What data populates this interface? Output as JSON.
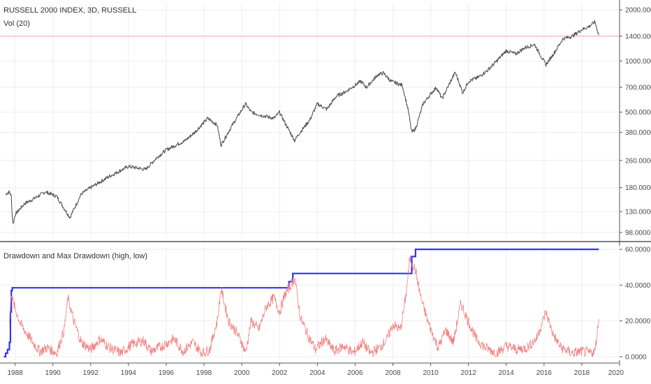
{
  "chart_data": [
    {
      "type": "line",
      "title": "RUSSELL 2000 INDEX, 3D, RUSSELL",
      "indicator": "Vol (20)",
      "y_scale": "log",
      "ylim": [
        90,
        2200
      ],
      "xlim": [
        1987.2,
        2020
      ],
      "y_ticks": [
        "2000.0000",
        "1400.0000",
        "1000.0000",
        "700.0000",
        "500.0000",
        "380.0000",
        "260.0000",
        "180.0000",
        "130.0000",
        "98.0000"
      ],
      "y_tick_values": [
        2000,
        1400,
        1000,
        700,
        500,
        380,
        260,
        180,
        130,
        98
      ],
      "reference_line": {
        "value": 1400,
        "color": "#f4a5a0"
      },
      "grid": true,
      "series": [
        {
          "color": "#555555",
          "x": [
            1987.5,
            1987.7,
            1987.8,
            1987.85,
            1987.9,
            1988.0,
            1988.5,
            1989.0,
            1989.6,
            1990.2,
            1990.8,
            1990.9,
            1991.5,
            1992.0,
            1993.0,
            1994.0,
            1994.9,
            1995.5,
            1996.0,
            1996.5,
            1997.0,
            1997.5,
            1998.2,
            1998.7,
            1998.9,
            1999.5,
            2000.2,
            2000.5,
            2001.0,
            2001.7,
            2002.0,
            2002.3,
            2002.8,
            2003.0,
            2003.6,
            2004.0,
            2004.5,
            2005.0,
            2005.5,
            2006.3,
            2006.6,
            2007.2,
            2007.5,
            2007.9,
            2008.2,
            2008.5,
            2008.8,
            2009.0,
            2009.2,
            2009.6,
            2010.0,
            2010.3,
            2010.6,
            2011.3,
            2011.7,
            2012.0,
            2012.5,
            2013.0,
            2013.5,
            2014.0,
            2014.5,
            2015.0,
            2015.5,
            2016.1,
            2016.5,
            2017.0,
            2017.5,
            2018.0,
            2018.4,
            2018.7,
            2018.9
          ],
          "values": [
            165,
            170,
            160,
            120,
            110,
            125,
            145,
            155,
            170,
            160,
            125,
            120,
            165,
            180,
            210,
            240,
            230,
            270,
            300,
            320,
            340,
            380,
            460,
            420,
            320,
            420,
            560,
            500,
            480,
            460,
            500,
            430,
            340,
            370,
            450,
            560,
            520,
            620,
            660,
            760,
            700,
            830,
            850,
            760,
            740,
            720,
            520,
            380,
            400,
            560,
            640,
            700,
            600,
            860,
            650,
            760,
            800,
            880,
            1000,
            1150,
            1100,
            1200,
            1250,
            950,
            1100,
            1350,
            1400,
            1530,
            1600,
            1700,
            1420
          ]
        }
      ]
    },
    {
      "type": "line",
      "title": "Drawdown and Max Drawdown (high, low)",
      "ylim": [
        -2,
        62
      ],
      "xlim": [
        1987.2,
        2020
      ],
      "y_ticks": [
        "60.0000",
        "40.0000",
        "20.0000",
        "0.0000"
      ],
      "y_tick_values": [
        60,
        40,
        20,
        0
      ],
      "x_ticks": [
        "1988",
        "1990",
        "1992",
        "1994",
        "1996",
        "1998",
        "2000",
        "2002",
        "2004",
        "2006",
        "2008",
        "2010",
        "2012",
        "2014",
        "2016",
        "2018",
        "2020"
      ],
      "x_tick_values": [
        1988,
        1990,
        1992,
        1994,
        1996,
        1998,
        2000,
        2002,
        2004,
        2006,
        2008,
        2010,
        2012,
        2014,
        2016,
        2018,
        2020
      ],
      "grid": true,
      "series": [
        {
          "color": "#3333ee",
          "step": true,
          "x": [
            1987.4,
            1987.5,
            1987.6,
            1987.7,
            1987.75,
            1987.8,
            1987.85,
            2002.4,
            2002.5,
            2002.7,
            2008.8,
            2009.0,
            2009.2,
            2018.9
          ],
          "values": [
            0,
            2,
            4,
            8,
            25,
            37,
            38.5,
            38.5,
            42,
            46.5,
            46.5,
            56,
            60,
            60
          ]
        },
        {
          "color": "#f08080",
          "x": [
            1987.7,
            1987.8,
            1987.9,
            1988.3,
            1988.8,
            1989.3,
            1989.7,
            1990.2,
            1990.6,
            1990.8,
            1991.1,
            1991.5,
            1992.0,
            1992.5,
            1993.0,
            1993.6,
            1994.2,
            1994.8,
            1995.2,
            1995.8,
            1996.4,
            1996.9,
            1997.4,
            1997.9,
            1998.3,
            1998.7,
            1998.9,
            1999.3,
            1999.7,
            2000.0,
            2000.2,
            2000.5,
            2000.9,
            2001.3,
            2001.7,
            2002.0,
            2002.3,
            2002.6,
            2002.8,
            2003.1,
            2003.5,
            2003.9,
            2004.4,
            2004.9,
            2005.4,
            2005.9,
            2006.4,
            2006.8,
            2007.3,
            2007.7,
            2008.0,
            2008.4,
            2008.7,
            2008.9,
            2009.2,
            2009.5,
            2009.9,
            2010.4,
            2010.8,
            2011.2,
            2011.6,
            2011.9,
            2012.4,
            2012.9,
            2013.5,
            2014.0,
            2014.6,
            2015.1,
            2015.6,
            2016.1,
            2016.5,
            2016.9,
            2017.5,
            2018.0,
            2018.4,
            2018.7,
            2018.9
          ],
          "values": [
            20,
            36,
            30,
            18,
            10,
            3,
            5,
            2,
            15,
            33,
            20,
            8,
            4,
            10,
            5,
            2,
            7,
            9,
            3,
            6,
            10,
            3,
            8,
            2,
            4,
            20,
            38,
            20,
            14,
            8,
            2,
            20,
            15,
            28,
            33,
            25,
            35,
            40,
            44,
            22,
            12,
            4,
            10,
            3,
            6,
            2,
            8,
            2,
            5,
            10,
            18,
            15,
            35,
            55,
            48,
            32,
            18,
            5,
            15,
            8,
            30,
            22,
            10,
            5,
            2,
            6,
            4,
            5,
            10,
            25,
            12,
            5,
            2,
            3,
            2,
            3,
            21
          ]
        }
      ]
    }
  ]
}
